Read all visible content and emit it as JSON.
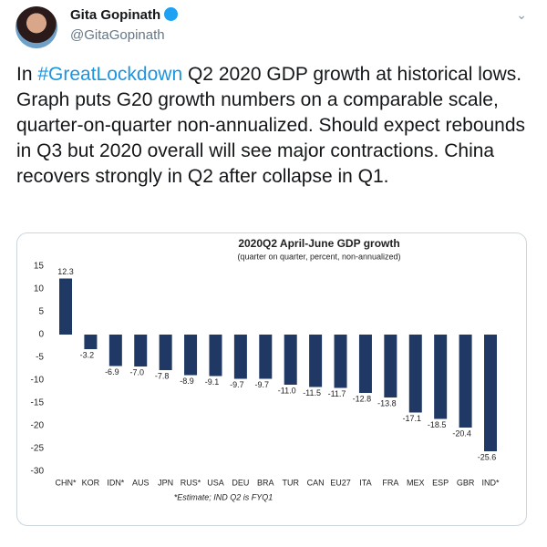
{
  "tweet": {
    "name": "Gita Gopinath",
    "handle": "@GitaGopinath",
    "text_before": "In",
    "hashtag": "#GreatLockdown",
    "text_after": "Q2 2020 GDP growth at historical lows. Graph puts G20 growth numbers on a comparable scale, quarter-on-quarter non-annualized. Should expect rebounds in Q3 but 2020 overall will see major contractions. China recovers strongly in Q2 after collapse in Q1."
  },
  "chart_data": {
    "type": "bar",
    "title": "2020Q2 April-June GDP growth",
    "subtitle": "(quarter on quarter, percent, non-annualized)",
    "note": "*Estimate; IND Q2 is FYQ1",
    "categories": [
      "CHN*",
      "KOR",
      "IDN*",
      "AUS",
      "JPN",
      "RUS*",
      "USA",
      "DEU",
      "BRA",
      "TUR",
      "CAN",
      "EU27",
      "ITA",
      "FRA",
      "MEX",
      "ESP",
      "GBR",
      "IND*"
    ],
    "values": [
      12.3,
      -3.2,
      -6.9,
      -7.0,
      -7.8,
      -8.9,
      -9.1,
      -9.7,
      -9.7,
      -11.0,
      -11.5,
      -11.7,
      -12.8,
      -13.8,
      -17.1,
      -18.5,
      -20.4,
      -25.6
    ],
    "value_labels": [
      "12.3",
      "-3.2",
      "-6.9",
      "-7.0",
      "-7.8",
      "-8.9",
      "-9.1",
      "-9.7",
      "-9.7",
      "-11.0",
      "-11.5",
      "-11.7",
      "-12.8",
      "-13.8",
      "-17.1",
      "-18.5",
      "-20.4",
      "-25.6"
    ],
    "color": "#1f3864",
    "ylim": [
      -30,
      15
    ],
    "yticks": [
      15,
      10,
      5,
      0,
      -5,
      -10,
      -15,
      -20,
      -25,
      -30
    ],
    "grid": false
  }
}
